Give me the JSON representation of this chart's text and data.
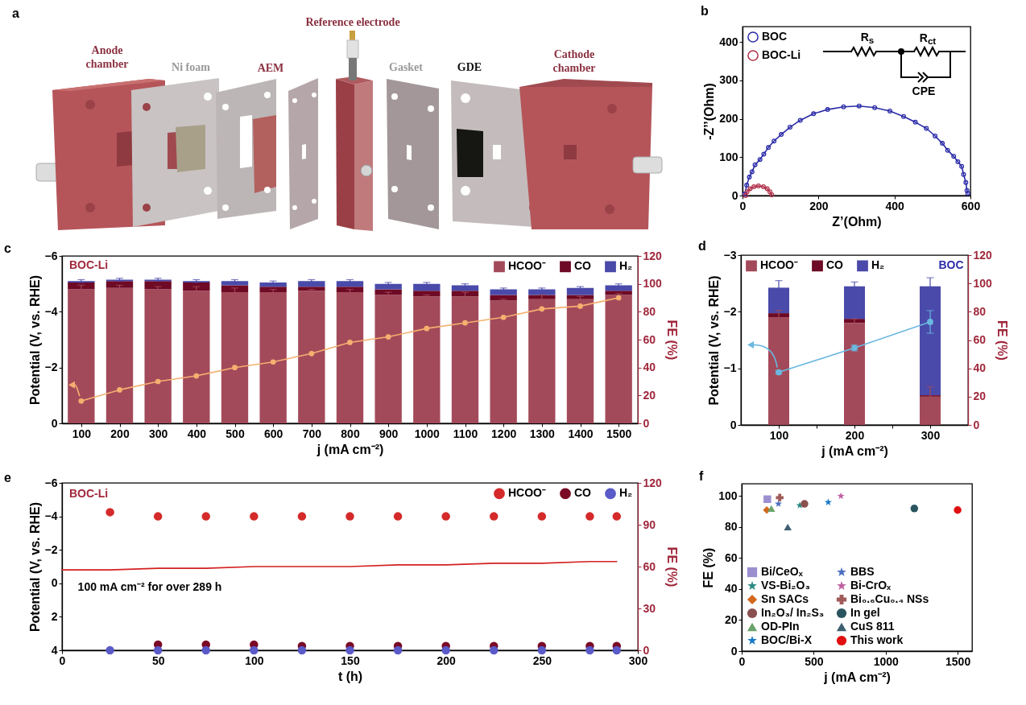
{
  "chart_data": [
    {
      "type": "other",
      "title": "a",
      "annotations": [
        "Anode chamber",
        "Ni foam",
        "AEM",
        "Reference electrode",
        "Gasket",
        "GDE",
        "Cathode chamber"
      ]
    },
    {
      "type": "line",
      "title": "b",
      "xlabel": "Z’(Ohm)",
      "ylabel": "-Z’’(Ohm)",
      "xlim": [
        0,
        600
      ],
      "xticks": [
        0,
        200,
        400,
        600
      ],
      "ylim": [
        0,
        440
      ],
      "yticks": [
        0,
        100,
        200,
        300,
        400
      ],
      "marker": "circle",
      "legend": "top left",
      "annotations": [
        "R$_{s}$",
        "R$_{ct}$",
        "CPE"
      ],
      "series": [
        {
          "name": "BOC",
          "color": "#2b2ba8",
          "x": [
            6,
            11,
            18,
            25,
            33,
            46,
            56,
            68,
            83,
            102,
            125,
            152,
            187,
            224,
            266,
            307,
            348,
            388,
            424,
            455,
            484,
            507,
            526,
            540,
            556,
            567,
            577,
            582,
            588,
            591,
            593
          ],
          "values": [
            4,
            27,
            48,
            62,
            80,
            94,
            108,
            125,
            142,
            159,
            178,
            196,
            213,
            224,
            231,
            233,
            229,
            220,
            206,
            191,
            175,
            155,
            136,
            118,
            102,
            88,
            76,
            55,
            34,
            13,
            6
          ]
        },
        {
          "name": "BOC-Li",
          "color": "#b0304a",
          "x": [
            8,
            12,
            20,
            30,
            42,
            55,
            65,
            72,
            77
          ],
          "values": [
            0,
            10,
            18,
            23,
            25,
            23,
            18,
            10,
            2
          ]
        }
      ]
    },
    {
      "type": "bar",
      "title": "c",
      "stacked": true,
      "categories": [
        "100",
        "200",
        "300",
        "400",
        "500",
        "600",
        "700",
        "800",
        "900",
        "1000",
        "1100",
        "1200",
        "1300",
        "1400",
        "1500"
      ],
      "xlabel": "j (mA cm⁻²)",
      "ylabel": "Potential (V, vs. RHE)",
      "ylim": [
        0,
        -6
      ],
      "yticks": [
        0,
        -2,
        -4,
        -6
      ],
      "y2label": "FE (%)",
      "y2lim": [
        0,
        120
      ],
      "y2ticks": [
        0,
        20,
        40,
        60,
        80,
        100,
        120
      ],
      "legend": "top right",
      "marker": "circle",
      "annotations": [
        "BOC-Li"
      ],
      "series": [
        {
          "name": "HCOO⁻",
          "color": "#a34a5a",
          "axis": "y2",
          "values": [
            96,
            97,
            96,
            95,
            94,
            94,
            95,
            94,
            92,
            91,
            91,
            88,
            89,
            89,
            92
          ],
          "errors": [
            3,
            2,
            2,
            3,
            3,
            2,
            1,
            2,
            2,
            1,
            3,
            1,
            3,
            2,
            1
          ]
        },
        {
          "name": "CO",
          "color": "#6e0a25",
          "axis": "y2",
          "values": [
            5,
            5,
            6,
            6,
            5,
            4,
            3,
            4,
            4,
            4,
            4,
            4,
            3,
            3,
            3
          ]
        },
        {
          "name": "H₂",
          "color": "#4a4aaa",
          "axis": "y2",
          "values": [
            1,
            1,
            1,
            1,
            3,
            3,
            4,
            4,
            4,
            5,
            4,
            4,
            4,
            5,
            4
          ],
          "errors": [
            1,
            1,
            1,
            1,
            1,
            1,
            1,
            1,
            1,
            1,
            1,
            1,
            1,
            1,
            1
          ]
        },
        {
          "type": "line",
          "color": "#f5b070",
          "values": [
            -0.8,
            -1.2,
            -1.5,
            -1.7,
            -2.0,
            -2.2,
            -2.5,
            -2.9,
            -3.1,
            -3.4,
            -3.6,
            -3.8,
            -4.1,
            -4.2,
            -4.5
          ]
        }
      ]
    },
    {
      "type": "bar",
      "title": "d",
      "stacked": true,
      "x": [
        100,
        200,
        300
      ],
      "xlim": [
        50,
        350
      ],
      "xticks": [
        100,
        {
          "value": 150,
          "label": null
        },
        200,
        {
          "value": 250,
          "label": null
        },
        300
      ],
      "xlabel": "j (mA cm⁻²)",
      "ylabel": "Potential (V, vs. RHE)",
      "ylim": [
        0,
        -3
      ],
      "yticks": [
        0,
        -1,
        -2,
        -3
      ],
      "y2label": "FE (%)",
      "y2lim": [
        0,
        120
      ],
      "y2ticks": [
        0,
        20,
        40,
        60,
        80,
        100,
        120
      ],
      "legend": "top left",
      "marker": "circle",
      "annotations": [
        "BOC"
      ],
      "series": [
        {
          "name": "HCOO⁻",
          "color": "#a34a5a",
          "axis": "y2",
          "values": [
            76,
            72,
            20
          ],
          "errors": [
            5,
            3,
            7
          ]
        },
        {
          "name": "CO",
          "color": "#6e0a25",
          "axis": "y2",
          "values": [
            3,
            3,
            1
          ]
        },
        {
          "name": "H₂",
          "color": "#4a4aaa",
          "axis": "y2",
          "values": [
            18,
            23,
            77
          ],
          "errors": [
            5,
            3,
            6
          ]
        },
        {
          "type": "line",
          "color": "#6bb8e0",
          "values": [
            -0.93,
            -1.36,
            -1.82
          ],
          "errors": [
            0.03,
            0.05,
            0.2
          ]
        }
      ]
    },
    {
      "type": "scatter",
      "title": "e",
      "xlabel": "t (h)",
      "xlim": [
        0,
        300
      ],
      "xticks": [
        0,
        50,
        100,
        150,
        200,
        250,
        300
      ],
      "ylabel": "Potential (V, vs. RHE)",
      "ylim": [
        4,
        -6
      ],
      "yticks": [
        4,
        2,
        0,
        -2,
        -4,
        -6
      ],
      "y2label": "FE (%)",
      "y2lim": [
        0,
        120
      ],
      "y2ticks": [
        0,
        30,
        60,
        90,
        120
      ],
      "legend": "top right",
      "marker": "circle",
      "annotations": [
        "BOC-Li",
        "100 mA cm⁻² for over 289 h"
      ],
      "x": [
        25,
        50,
        75,
        100,
        125,
        150,
        175,
        200,
        225,
        250,
        275,
        289
      ],
      "series": [
        {
          "name": "HCOO⁻",
          "color": "#d42a2a",
          "axis": "y2",
          "values": [
            99,
            96,
            96,
            96,
            96,
            96,
            96,
            96,
            96,
            96,
            96,
            96
          ]
        },
        {
          "name": "CO",
          "color": "#7a0a25",
          "axis": "y2",
          "values": [
            null,
            4,
            4,
            4,
            3,
            3,
            3,
            3,
            3,
            3,
            3,
            3
          ]
        },
        {
          "name": "H₂",
          "color": "#5a5ac8",
          "axis": "y2",
          "values": [
            0,
            0,
            0,
            0,
            0,
            0,
            0,
            0,
            0,
            0,
            0,
            0
          ]
        },
        {
          "type": "line",
          "color": "#d42020",
          "marker": "none",
          "x": [
            0,
            25,
            50,
            75,
            100,
            125,
            150,
            175,
            200,
            225,
            250,
            275,
            289
          ],
          "values": [
            -0.8,
            -0.8,
            -0.9,
            -0.9,
            -1.0,
            -1.0,
            -1.0,
            -1.1,
            -1.1,
            -1.2,
            -1.2,
            -1.3,
            -1.3
          ]
        }
      ]
    },
    {
      "type": "scatter",
      "title": "f",
      "xlabel": "j (mA cm⁻²)",
      "ylabel": "FE (%)",
      "xlim": [
        0,
        1600
      ],
      "xticks": [
        0,
        500,
        1000,
        1500
      ],
      "ylim": [
        0,
        108
      ],
      "yticks": [
        0,
        20,
        40,
        60,
        80,
        100
      ],
      "legend": "bottom left",
      "series": [
        {
          "name": "Bi/CeOₓ",
          "color": "#9b8fd0",
          "marker": "square",
          "x": [
            178
          ],
          "values": [
            98
          ]
        },
        {
          "name": "Sn SACs",
          "color": "#d2691e",
          "marker": "diamond",
          "x": [
            174
          ],
          "values": [
            91
          ]
        },
        {
          "name": "OD-PIn",
          "color": "#6aa36a",
          "marker": "triangle",
          "x": [
            206
          ],
          "values": [
            92
          ]
        },
        {
          "name": "BBS",
          "color": "#4a6ec0",
          "marker": "star",
          "x": [
            255
          ],
          "values": [
            95
          ]
        },
        {
          "name": "Bi₀.₆Cu₀.₄ NSs",
          "color": "#a05a5a",
          "marker": "cross",
          "x": [
            264
          ],
          "values": [
            99
          ]
        },
        {
          "name": "CuS 811",
          "color": "#3d6070",
          "marker": "triangle",
          "x": [
            320
          ],
          "values": [
            80
          ]
        },
        {
          "name": "VS-Bi₂O₃",
          "color": "#2a8a80",
          "marker": "star",
          "x": [
            403
          ],
          "values": [
            94
          ]
        },
        {
          "name": "In₂O₃/ In₂S₃",
          "color": "#8a5050",
          "marker": "circle",
          "x": [
            436
          ],
          "values": [
            95
          ]
        },
        {
          "name": "BOC/Bi-X",
          "color": "#1a7ac8",
          "marker": "star",
          "x": [
            601
          ],
          "values": [
            96
          ]
        },
        {
          "name": "Bi-CrOₓ",
          "color": "#c060a0",
          "marker": "star",
          "x": [
            689
          ],
          "values": [
            100
          ]
        },
        {
          "name": "In gel",
          "color": "#2a5560",
          "marker": "circle",
          "x": [
            1199
          ],
          "values": [
            92
          ]
        },
        {
          "name": "This work",
          "color": "#e01010",
          "marker": "circle",
          "x": [
            1500
          ],
          "values": [
            91
          ]
        }
      ]
    }
  ]
}
